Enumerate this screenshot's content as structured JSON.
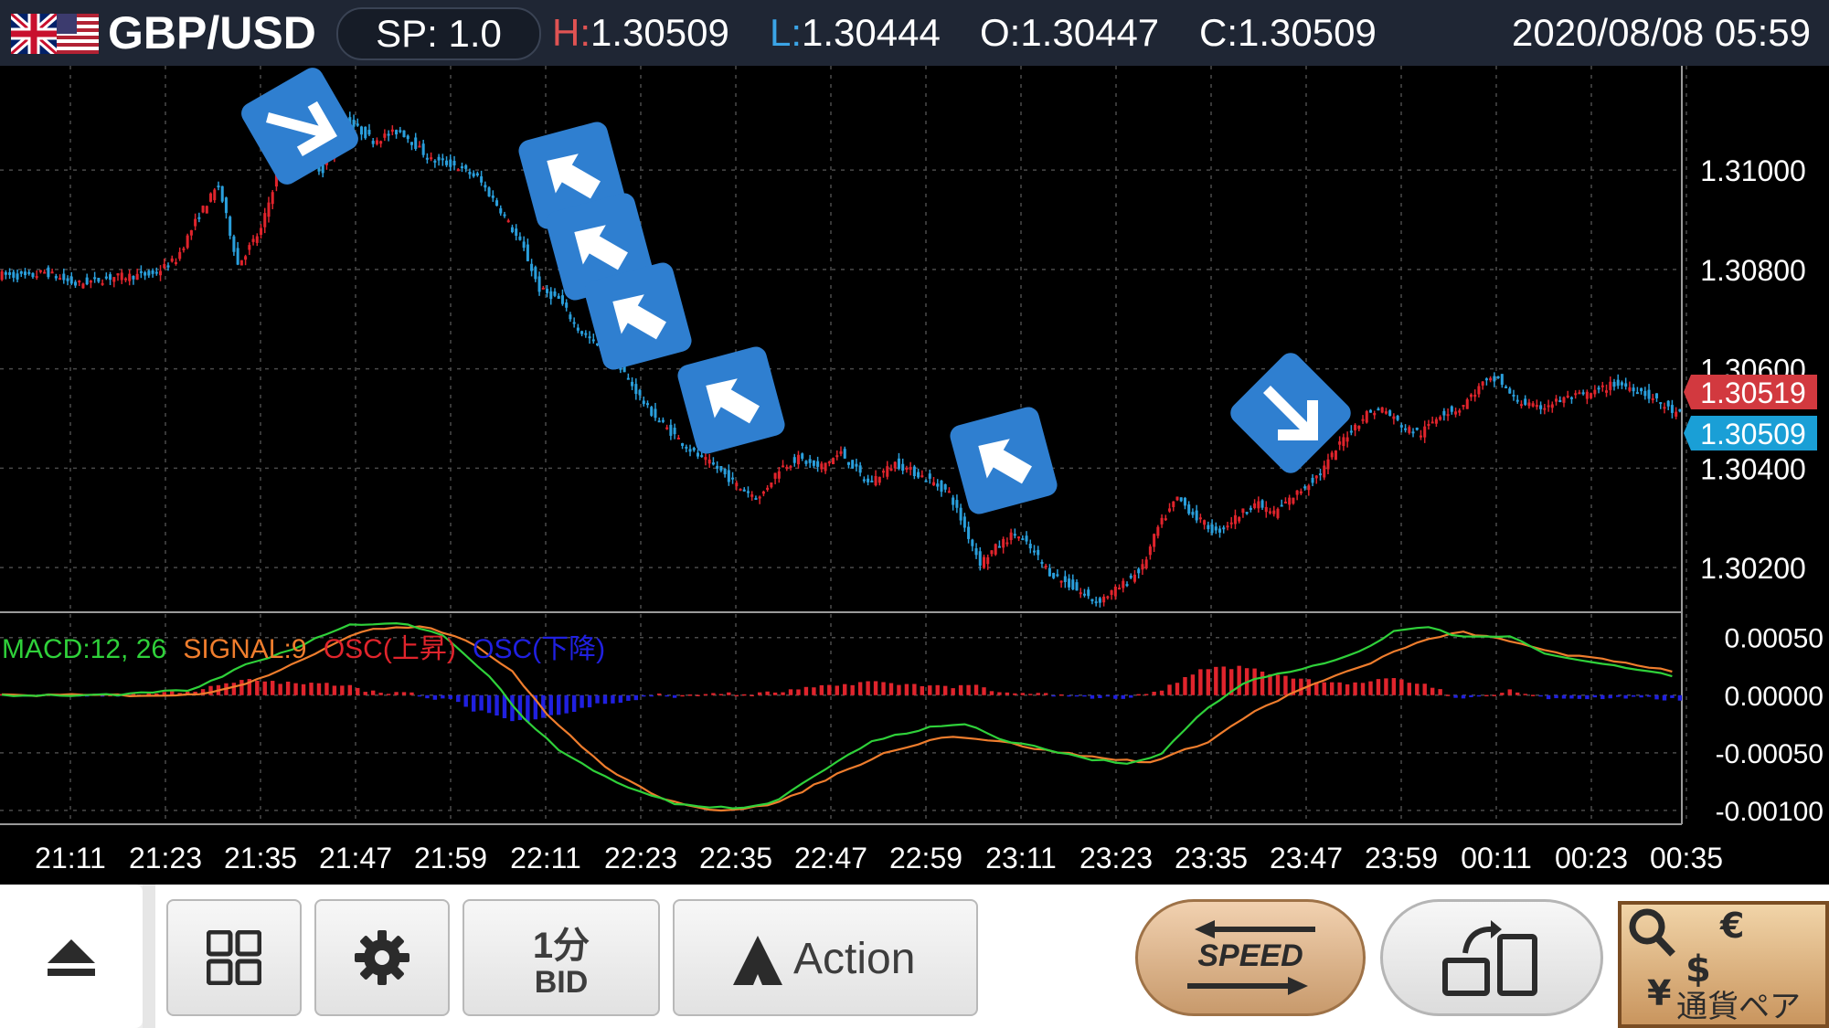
{
  "header": {
    "symbol": "GBP/USD",
    "spread_label": "SP: 1.0",
    "high_key": "H:",
    "high_value": "1.30509",
    "low_key": "L:",
    "low_value": "1.30444",
    "open_key": "O:",
    "open_value": "1.30447",
    "close_key": "C:",
    "close_value": "1.30509",
    "datetime": "2020/08/08 05:59"
  },
  "price_badges": {
    "ask": "1.30519",
    "bid": "1.30509",
    "ask_color": "#d2393f",
    "bid_color": "#1a9fd6"
  },
  "macd_legend": {
    "macd": "MACD:12, 26",
    "signal": "SIGNAL:9",
    "osc_up": "OSC(上昇)",
    "osc_down": "OSC(下降)"
  },
  "colors": {
    "bull": "#e0242c",
    "bear": "#2a9fdc",
    "macd_line": "#2fd13a",
    "signal_line": "#ef7d2d",
    "osc_up": "#e0242c",
    "osc_down": "#2020e0",
    "arrow_badge": "#2f7fd0"
  },
  "toolbar": {
    "layout_icon": "grid-icon",
    "settings_icon": "gear-icon",
    "timeframe_top": "1分",
    "timeframe_bottom": "BID",
    "action_label": "Action",
    "speed_label": "SPEED",
    "pair_label": "通貨ペア"
  },
  "chart_data": [
    {
      "type": "candlestick",
      "x_tick_labels": [
        "21:11",
        "21:23",
        "21:35",
        "21:47",
        "21:59",
        "22:11",
        "22:23",
        "22:35",
        "22:47",
        "22:59",
        "23:11",
        "23:23",
        "23:35",
        "23:47",
        "23:59",
        "00:11",
        "00:23",
        "00:35"
      ],
      "y_tick_labels": [
        "1.31000",
        "1.30800",
        "1.30600",
        "1.30400",
        "1.30200"
      ],
      "y_ticks": [
        1.31,
        1.308,
        1.306,
        1.304,
        1.302
      ],
      "ylim": [
        1.3011,
        1.3121
      ],
      "grid": true,
      "price_path": [
        [
          0,
          1.3079
        ],
        [
          8,
          1.30785
        ],
        [
          12,
          1.30795
        ],
        [
          20,
          1.3077
        ],
        [
          30,
          1.30785
        ],
        [
          40,
          1.3079
        ],
        [
          46,
          1.3082
        ],
        [
          52,
          1.3091
        ],
        [
          57,
          1.3097
        ],
        [
          62,
          1.3081
        ],
        [
          68,
          1.3088
        ],
        [
          72,
          1.3099
        ],
        [
          78,
          1.3103
        ],
        [
          84,
          1.31
        ],
        [
          90,
          1.311
        ],
        [
          97,
          1.3106
        ],
        [
          104,
          1.3108
        ],
        [
          112,
          1.3102
        ],
        [
          118,
          1.3101
        ],
        [
          124,
          1.30985
        ],
        [
          130,
          1.3092
        ],
        [
          136,
          1.3084
        ],
        [
          140,
          1.3076
        ],
        [
          145,
          1.3074
        ],
        [
          150,
          1.3068
        ],
        [
          156,
          1.3064
        ],
        [
          162,
          1.3059
        ],
        [
          168,
          1.3052
        ],
        [
          173,
          1.3048
        ],
        [
          180,
          1.3043
        ],
        [
          186,
          1.304
        ],
        [
          192,
          1.3036
        ],
        [
          197,
          1.3034
        ],
        [
          202,
          1.304
        ],
        [
          207,
          1.3042
        ],
        [
          212,
          1.304
        ],
        [
          218,
          1.3043
        ],
        [
          225,
          1.3037
        ],
        [
          232,
          1.3041
        ],
        [
          240,
          1.3038
        ],
        [
          246,
          1.3035
        ],
        [
          250,
          1.3028
        ],
        [
          254,
          1.3021
        ],
        [
          258,
          1.3024
        ],
        [
          263,
          1.3027
        ],
        [
          268,
          1.3023
        ],
        [
          272,
          1.3019
        ],
        [
          278,
          1.3016
        ],
        [
          284,
          1.3013
        ],
        [
          290,
          1.3016
        ],
        [
          296,
          1.302
        ],
        [
          300,
          1.3028
        ],
        [
          305,
          1.3034
        ],
        [
          310,
          1.303
        ],
        [
          315,
          1.3027
        ],
        [
          320,
          1.303
        ],
        [
          325,
          1.3033
        ],
        [
          330,
          1.3031
        ],
        [
          336,
          1.3035
        ],
        [
          342,
          1.3039
        ],
        [
          348,
          1.3046
        ],
        [
          354,
          1.3051
        ],
        [
          358,
          1.3052
        ],
        [
          364,
          1.3048
        ],
        [
          368,
          1.3047
        ],
        [
          373,
          1.3051
        ],
        [
          378,
          1.3052
        ],
        [
          384,
          1.3057
        ],
        [
          388,
          1.3058
        ],
        [
          392,
          1.3054
        ],
        [
          398,
          1.3052
        ],
        [
          405,
          1.3054
        ],
        [
          412,
          1.3055
        ],
        [
          418,
          1.3057
        ],
        [
          424,
          1.3056
        ],
        [
          430,
          1.3053
        ],
        [
          434,
          1.30509
        ]
      ]
    },
    {
      "type": "macd",
      "fast": 12,
      "slow": 26,
      "signal_period": 9,
      "y_tick_labels": [
        "0.00050",
        "0.00000",
        "-0.00050",
        "-0.00100"
      ],
      "y_ticks": [
        0.0005,
        0.0,
        -0.0005,
        -0.001
      ],
      "ylim": [
        -0.00112,
        0.00072
      ],
      "series": [
        {
          "name": "MACD:12, 26",
          "points": [
            [
              0,
              0.0
            ],
            [
              30,
              0.0
            ],
            [
              50,
              5e-05
            ],
            [
              62,
              0.00025
            ],
            [
              75,
              0.0004
            ],
            [
              90,
              0.00062
            ],
            [
              105,
              0.00062
            ],
            [
              115,
              0.0005
            ],
            [
              125,
              0.0002
            ],
            [
              135,
              -0.0002
            ],
            [
              145,
              -0.0005
            ],
            [
              160,
              -0.00078
            ],
            [
              175,
              -0.00095
            ],
            [
              190,
              -0.00098
            ],
            [
              200,
              -0.00092
            ],
            [
              210,
              -0.0007
            ],
            [
              225,
              -0.0004
            ],
            [
              240,
              -0.00028
            ],
            [
              250,
              -0.00025
            ],
            [
              258,
              -0.00038
            ],
            [
              268,
              -0.00045
            ],
            [
              280,
              -0.00055
            ],
            [
              292,
              -0.0006
            ],
            [
              300,
              -0.0005
            ],
            [
              310,
              -0.00015
            ],
            [
              322,
              0.00012
            ],
            [
              335,
              0.00022
            ],
            [
              350,
              0.00035
            ],
            [
              360,
              0.00055
            ],
            [
              368,
              0.0006
            ],
            [
              378,
              0.0005
            ],
            [
              390,
              0.00052
            ],
            [
              400,
              0.00035
            ],
            [
              412,
              0.00028
            ],
            [
              425,
              0.00022
            ],
            [
              434,
              0.00015
            ]
          ]
        },
        {
          "name": "SIGNAL:9",
          "points": [
            [
              0,
              0.0
            ],
            [
              50,
              0.0
            ],
            [
              65,
              0.00012
            ],
            [
              80,
              0.00035
            ],
            [
              95,
              0.00058
            ],
            [
              110,
              0.0006
            ],
            [
              122,
              0.00045
            ],
            [
              132,
              0.0002
            ],
            [
              142,
              -0.0002
            ],
            [
              155,
              -0.0006
            ],
            [
              170,
              -0.0009
            ],
            [
              185,
              -0.001
            ],
            [
              200,
              -0.00095
            ],
            [
              215,
              -0.0007
            ],
            [
              230,
              -0.00048
            ],
            [
              245,
              -0.00035
            ],
            [
              258,
              -0.0004
            ],
            [
              270,
              -0.00048
            ],
            [
              285,
              -0.00055
            ],
            [
              298,
              -0.00058
            ],
            [
              312,
              -0.0004
            ],
            [
              325,
              -0.00012
            ],
            [
              338,
              8e-05
            ],
            [
              352,
              0.00025
            ],
            [
              365,
              0.00045
            ],
            [
              378,
              0.00055
            ],
            [
              392,
              0.00045
            ],
            [
              405,
              0.00035
            ],
            [
              420,
              0.00028
            ],
            [
              434,
              0.0002
            ]
          ]
        }
      ]
    }
  ]
}
